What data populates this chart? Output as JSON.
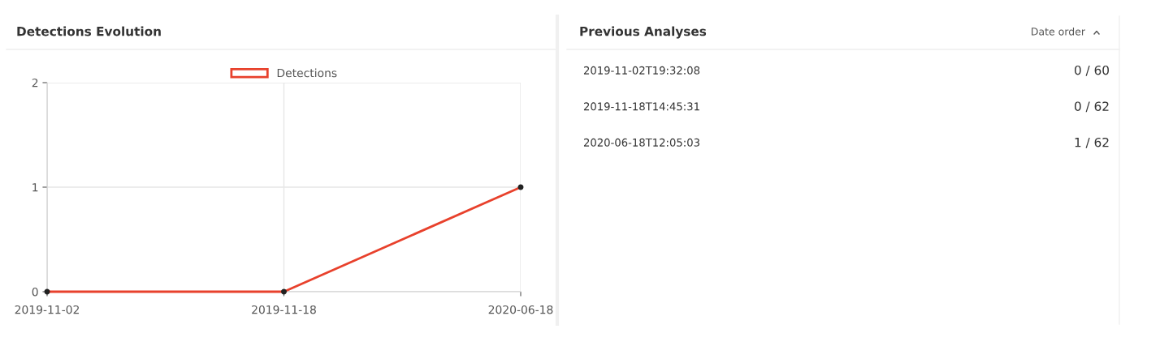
{
  "chart_data": [
    {
      "type": "line",
      "title": "Detections Evolution",
      "categories": [
        "2019-11-02",
        "2019-11-18",
        "2020-06-18"
      ],
      "series": [
        {
          "name": "Detections",
          "color": "#e8412c",
          "values": [
            0,
            0,
            1
          ]
        }
      ],
      "ylim": [
        0,
        2
      ],
      "yticks": [
        0,
        1,
        2
      ],
      "grid": true,
      "legend": "top",
      "marker": "circle",
      "line_style": "solid"
    },
    {
      "type": "other",
      "title": "Previous Analyses",
      "annotations": [
        "Date order",
        "2019-11-02T19:32:08",
        "0 / 60",
        "2019-11-18T14:45:31",
        "0 / 62",
        "2020-06-18T12:05:03",
        "1 / 62"
      ]
    }
  ]
}
